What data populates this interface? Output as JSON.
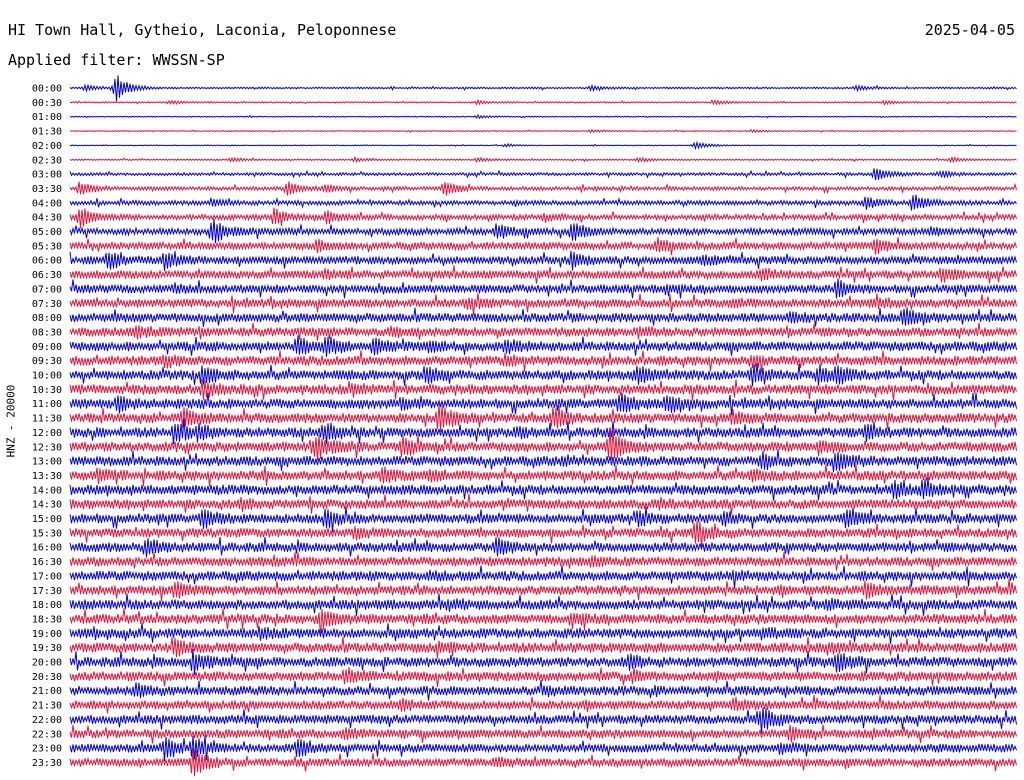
{
  "header": {
    "station": "HI Town Hall, Gytheio, Laconia, Peloponnese",
    "date": "2025-04-05",
    "filter": "Applied filter: WWSSN-SP"
  },
  "chart_data": {
    "type": "line",
    "title": "HI Town Hall, Gytheio, Laconia, Peloponnese",
    "ylabel": "HNZ - 20000",
    "colors": [
      "#0000e6",
      "#e6143c"
    ],
    "categories": [
      "00:00",
      "00:30",
      "01:00",
      "01:30",
      "02:00",
      "02:30",
      "03:00",
      "03:30",
      "04:00",
      "04:30",
      "05:00",
      "05:30",
      "06:00",
      "06:30",
      "07:00",
      "07:30",
      "08:00",
      "08:30",
      "09:00",
      "09:30",
      "10:00",
      "10:30",
      "11:00",
      "11:30",
      "12:00",
      "12:30",
      "13:00",
      "13:30",
      "14:00",
      "14:30",
      "15:00",
      "15:30",
      "16:00",
      "16:30",
      "17:00",
      "17:30",
      "18:00",
      "18:30",
      "19:00",
      "19:30",
      "20:00",
      "20:30",
      "21:00",
      "21:30",
      "22:00",
      "22:30",
      "23:00",
      "23:30"
    ],
    "noise": [
      0.6,
      0.45,
      0.35,
      0.35,
      0.3,
      0.5,
      1.0,
      1.3,
      1.6,
      1.9,
      2.3,
      2.6,
      2.8,
      2.9,
      3.0,
      3.1,
      3.2,
      3.2,
      3.4,
      3.4,
      3.5,
      3.5,
      3.5,
      3.5,
      3.5,
      3.5,
      3.5,
      3.5,
      3.5,
      3.4,
      3.4,
      3.3,
      3.3,
      3.3,
      3.4,
      3.5,
      3.5,
      3.5,
      3.5,
      3.5,
      3.5,
      3.4,
      3.3,
      3.2,
      3.2,
      3.1,
      3.0,
      2.9
    ],
    "events": [
      [
        [
          0.048,
          15
        ],
        [
          0.016,
          3
        ],
        [
          0.55,
          2.5
        ],
        [
          0.83,
          2.5
        ]
      ],
      [
        [
          0.105,
          2
        ],
        [
          0.43,
          2
        ],
        [
          0.68,
          2.5
        ],
        [
          0.86,
          2
        ]
      ],
      [
        [
          0.43,
          1.5
        ]
      ],
      [
        [
          0.55,
          1.5
        ],
        [
          0.72,
          1.5
        ]
      ],
      [
        [
          0.46,
          1.5
        ],
        [
          0.66,
          4
        ]
      ],
      [
        [
          0.17,
          2
        ],
        [
          0.3,
          2
        ],
        [
          0.43,
          2
        ],
        [
          0.6,
          2
        ],
        [
          0.93,
          2.5
        ]
      ],
      [
        [
          0.85,
          7
        ],
        [
          0.92,
          3
        ]
      ],
      [
        [
          0.01,
          7
        ],
        [
          0.23,
          7
        ],
        [
          0.395,
          8
        ],
        [
          0.27,
          4
        ]
      ],
      [
        [
          0.84,
          6
        ],
        [
          0.89,
          9
        ],
        [
          0.15,
          3
        ]
      ],
      [
        [
          0.01,
          11
        ],
        [
          0.215,
          8
        ],
        [
          0.27,
          6
        ],
        [
          0.5,
          3
        ]
      ],
      [
        [
          0.15,
          13
        ],
        [
          0.45,
          8
        ],
        [
          0.53,
          10
        ],
        [
          0.91,
          3
        ]
      ],
      [
        [
          0.26,
          5
        ],
        [
          0.62,
          6
        ],
        [
          0.85,
          7
        ]
      ],
      [
        [
          0.04,
          9
        ],
        [
          0.1,
          8
        ],
        [
          0.53,
          8
        ],
        [
          0.67,
          4
        ]
      ],
      [
        [
          0.27,
          3
        ],
        [
          0.73,
          5
        ],
        [
          0.92,
          6
        ]
      ],
      [
        [
          0.81,
          9
        ],
        [
          0.11,
          3
        ],
        [
          0.63,
          3
        ]
      ],
      [
        [
          0.42,
          5
        ],
        [
          0.7,
          3
        ],
        [
          0.85,
          3
        ]
      ],
      [
        [
          0.76,
          4
        ],
        [
          0.88,
          9
        ]
      ],
      [
        [
          0.07,
          5
        ],
        [
          0.6,
          4
        ],
        [
          0.34,
          3
        ]
      ],
      [
        [
          0.24,
          9
        ],
        [
          0.27,
          9
        ],
        [
          0.32,
          8
        ],
        [
          0.46,
          5
        ],
        [
          0.38,
          4
        ]
      ],
      [
        [
          0.1,
          5
        ],
        [
          0.46,
          4
        ],
        [
          0.72,
          4
        ]
      ],
      [
        [
          0.14,
          9
        ],
        [
          0.375,
          8
        ],
        [
          0.6,
          8
        ],
        [
          0.72,
          8
        ],
        [
          0.79,
          8
        ],
        [
          0.81,
          6
        ]
      ],
      [
        [
          0.14,
          8
        ],
        [
          0.3,
          4
        ]
      ],
      [
        [
          0.05,
          6
        ],
        [
          0.58,
          9
        ],
        [
          0.63,
          8
        ],
        [
          0.35,
          3
        ]
      ],
      [
        [
          0.12,
          9
        ],
        [
          0.39,
          15
        ],
        [
          0.51,
          10
        ],
        [
          0.7,
          5
        ]
      ],
      [
        [
          0.11,
          9
        ],
        [
          0.135,
          6
        ],
        [
          0.27,
          8
        ],
        [
          0.47,
          4
        ],
        [
          0.84,
          6
        ]
      ],
      [
        [
          0.26,
          11
        ],
        [
          0.35,
          9
        ],
        [
          0.57,
          14
        ],
        [
          0.79,
          5
        ]
      ],
      [
        [
          0.73,
          8
        ],
        [
          0.81,
          9
        ],
        [
          0.52,
          3
        ]
      ],
      [
        [
          0.03,
          6
        ],
        [
          0.33,
          6
        ],
        [
          0.38,
          4
        ],
        [
          0.72,
          5
        ]
      ],
      [
        [
          0.87,
          7
        ],
        [
          0.9,
          8
        ]
      ],
      [
        [
          0.18,
          4
        ],
        [
          0.62,
          3
        ]
      ],
      [
        [
          0.14,
          8
        ],
        [
          0.27,
          8
        ],
        [
          0.6,
          6
        ],
        [
          0.82,
          9
        ],
        [
          0.69,
          5
        ]
      ],
      [
        [
          0.66,
          11
        ],
        [
          0.3,
          4
        ]
      ],
      [
        [
          0.08,
          8
        ],
        [
          0.45,
          8
        ]
      ],
      [
        [
          0.2,
          3
        ],
        [
          0.55,
          3
        ]
      ],
      [
        [
          0.38,
          3
        ],
        [
          0.7,
          3
        ]
      ],
      [
        [
          0.11,
          7
        ],
        [
          0.84,
          7
        ]
      ],
      [
        [
          0.4,
          3
        ],
        [
          0.8,
          3
        ]
      ],
      [
        [
          0.265,
          8
        ],
        [
          0.53,
          5
        ]
      ],
      [
        [
          0.2,
          4
        ],
        [
          0.73,
          4
        ]
      ],
      [
        [
          0.11,
          7
        ],
        [
          0.39,
          4
        ],
        [
          0.8,
          4
        ]
      ],
      [
        [
          0.13,
          9
        ],
        [
          0.59,
          7
        ],
        [
          0.81,
          9
        ]
      ],
      [
        [
          0.29,
          7
        ],
        [
          0.6,
          3
        ]
      ],
      [
        [
          0.07,
          6
        ],
        [
          0.5,
          3
        ]
      ],
      [
        [
          0.35,
          4
        ],
        [
          0.7,
          4
        ]
      ],
      [
        [
          0.73,
          13
        ]
      ],
      [
        [
          0.29,
          4
        ],
        [
          0.76,
          7
        ]
      ],
      [
        [
          0.1,
          11
        ],
        [
          0.13,
          10
        ],
        [
          0.24,
          9
        ],
        [
          0.75,
          5
        ]
      ],
      [
        [
          0.13,
          15
        ],
        [
          0.45,
          4
        ]
      ]
    ]
  }
}
